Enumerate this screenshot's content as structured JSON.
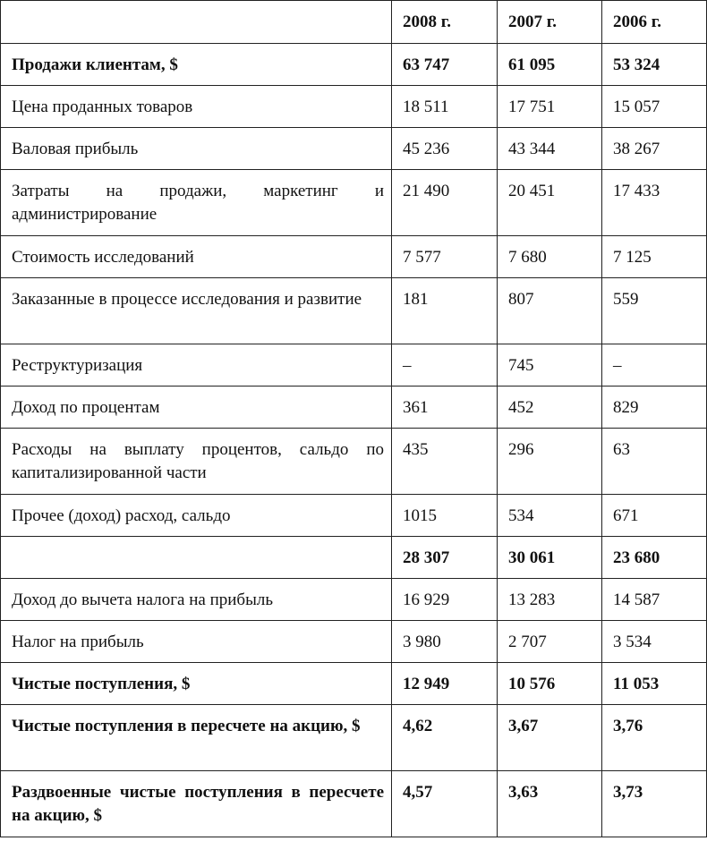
{
  "header": {
    "label": "",
    "years": [
      "2008 г.",
      "2007 г.",
      "2006 г."
    ]
  },
  "rows": [
    {
      "label": "Продажи клиентам, $",
      "values": [
        "63 747",
        "61 095",
        "53 324"
      ],
      "bold_label": true,
      "bold_values": true,
      "two_line": false
    },
    {
      "label": "Цена проданных товаров",
      "values": [
        "18 511",
        "17 751",
        "15 057"
      ],
      "bold_label": false,
      "bold_values": false,
      "two_line": false
    },
    {
      "label": "Валовая прибыль",
      "values": [
        "45 236",
        "43 344",
        "38 267"
      ],
      "bold_label": false,
      "bold_values": false,
      "two_line": false
    },
    {
      "label": "Затраты на продажи, маркетинг и администрирование",
      "values": [
        "21 490",
        "20 451",
        "17 433"
      ],
      "bold_label": false,
      "bold_values": false,
      "two_line": true
    },
    {
      "label": "Стоимость исследований",
      "values": [
        "7 577",
        "7 680",
        "7 125"
      ],
      "bold_label": false,
      "bold_values": false,
      "two_line": false
    },
    {
      "label": "Заказанные в процессе исследования и развитие",
      "values": [
        "181",
        "807",
        "559"
      ],
      "bold_label": false,
      "bold_values": false,
      "two_line": true
    },
    {
      "label": "Реструктуризация",
      "values": [
        "–",
        "745",
        "–"
      ],
      "bold_label": false,
      "bold_values": false,
      "two_line": false
    },
    {
      "label": "Доход по процентам",
      "values": [
        "361",
        "452",
        "829"
      ],
      "bold_label": false,
      "bold_values": false,
      "two_line": false
    },
    {
      "label": "Расходы на выплату процентов, сальдо по капитализированной части",
      "values": [
        "435",
        "296",
        "63"
      ],
      "bold_label": false,
      "bold_values": false,
      "two_line": true
    },
    {
      "label": "Прочее (доход) расход, сальдо",
      "values": [
        "1015",
        "534",
        "671"
      ],
      "bold_label": false,
      "bold_values": false,
      "two_line": false
    },
    {
      "label": "",
      "values": [
        "28 307",
        "30 061",
        "23 680"
      ],
      "bold_label": true,
      "bold_values": true,
      "two_line": false
    },
    {
      "label": "Доход до вычета налога на прибыль",
      "values": [
        "16 929",
        "13 283",
        "14 587"
      ],
      "bold_label": false,
      "bold_values": false,
      "two_line": false
    },
    {
      "label": "Налог на прибыль",
      "values": [
        "3 980",
        "2 707",
        "3 534"
      ],
      "bold_label": false,
      "bold_values": false,
      "two_line": false
    },
    {
      "label": "Чистые поступления, $",
      "values": [
        "12 949",
        "10 576",
        "11 053"
      ],
      "bold_label": true,
      "bold_values": true,
      "two_line": false
    },
    {
      "label": "Чистые поступления в пересчете на акцию, $",
      "values": [
        "4,62",
        "3,67",
        "3,76"
      ],
      "bold_label": true,
      "bold_values": true,
      "two_line": true
    },
    {
      "label": "Раздвоенные чистые поступления в пересчете на акцию, $",
      "values": [
        "4,57",
        "3,63",
        "3,73"
      ],
      "bold_label": true,
      "bold_values": true,
      "two_line": true
    }
  ]
}
